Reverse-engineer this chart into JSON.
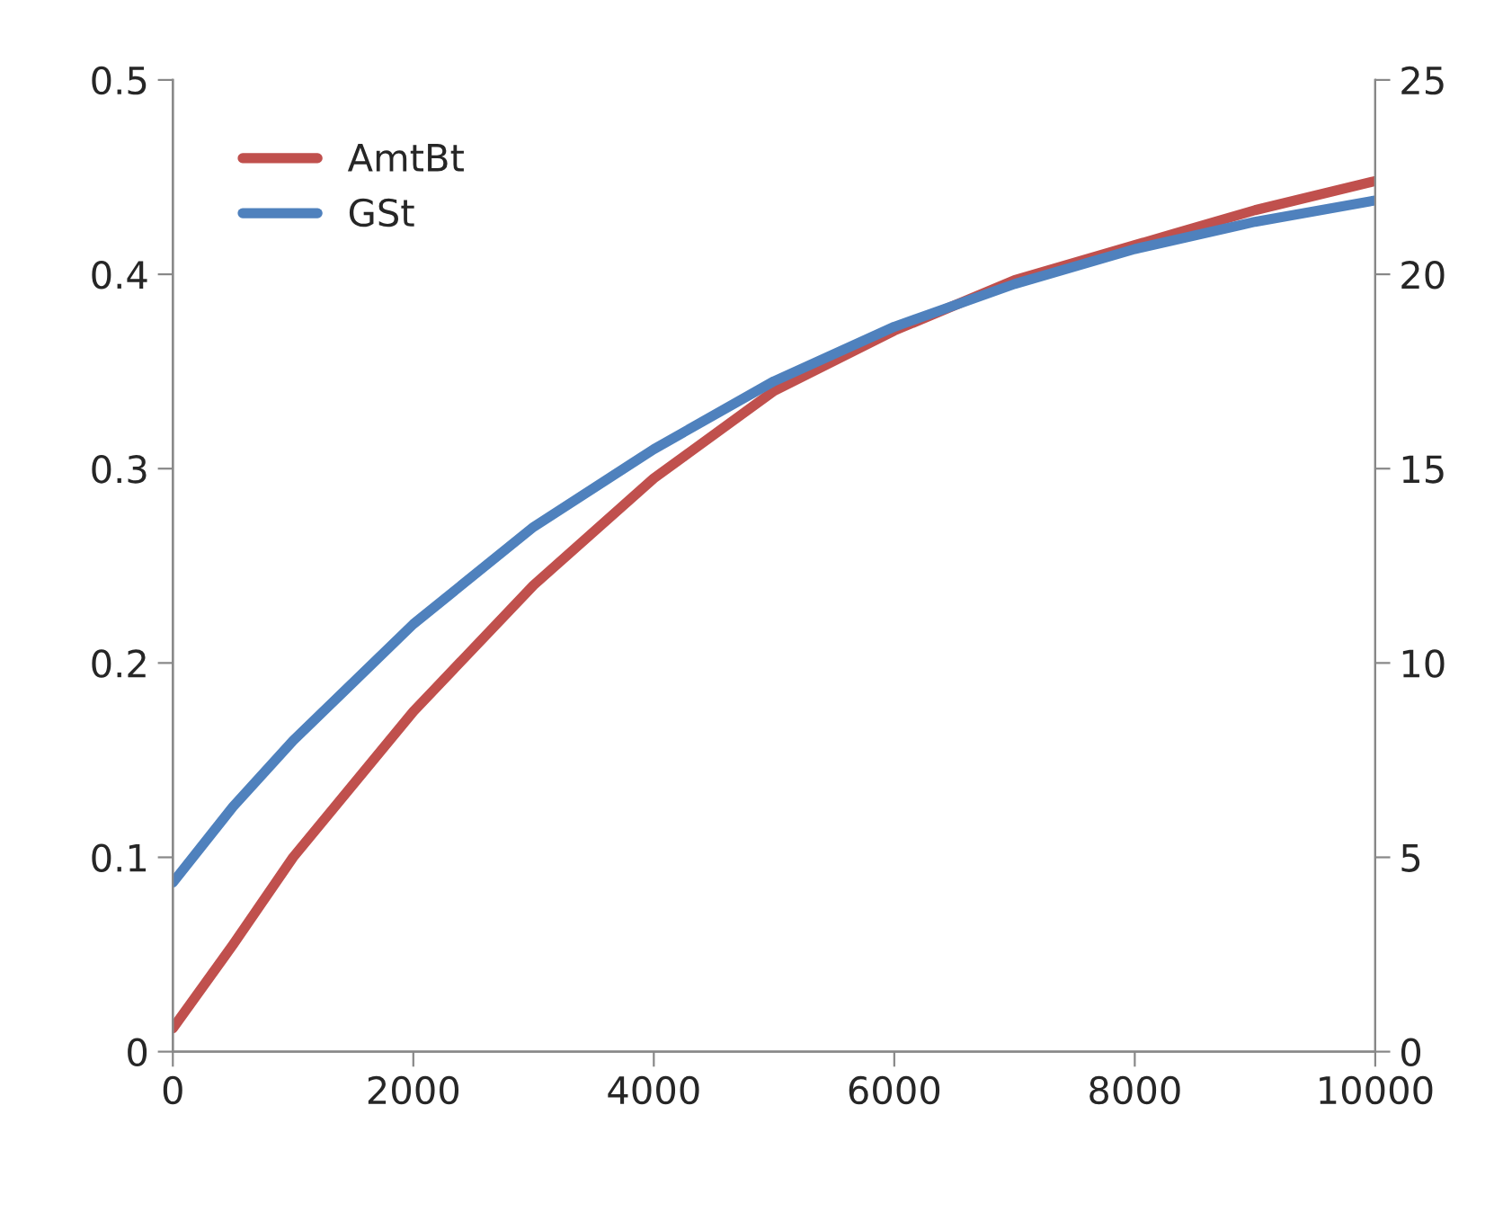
{
  "chart_data": {
    "type": "line",
    "x": [
      0,
      500,
      1000,
      2000,
      3000,
      4000,
      5000,
      6000,
      7000,
      8000,
      9000,
      10000
    ],
    "series": [
      {
        "name": "AmtBt",
        "color": "#c0504d",
        "values": [
          0.012,
          0.055,
          0.1,
          0.175,
          0.24,
          0.295,
          0.34,
          0.371,
          0.397,
          0.415,
          0.433,
          0.448
        ]
      },
      {
        "name": "GSt",
        "color": "#4f81bd",
        "axis": "y2",
        "values": [
          4.35,
          6.3,
          8,
          11,
          13.5,
          15.5,
          17.25,
          18.65,
          19.75,
          20.65,
          21.35,
          21.9
        ]
      }
    ],
    "xlim": [
      0,
      10000
    ],
    "xticks": [
      0,
      2000,
      4000,
      6000,
      8000,
      10000
    ],
    "ylim": [
      0,
      0.5
    ],
    "yticks": [
      0,
      0.1,
      0.2,
      0.3,
      0.4,
      0.5
    ],
    "y2lim": [
      0,
      25
    ],
    "y2ticks": [
      0,
      5,
      10,
      15,
      20,
      25
    ],
    "grid": false,
    "legend": "top left",
    "marker": "none",
    "line_style": "solid"
  }
}
